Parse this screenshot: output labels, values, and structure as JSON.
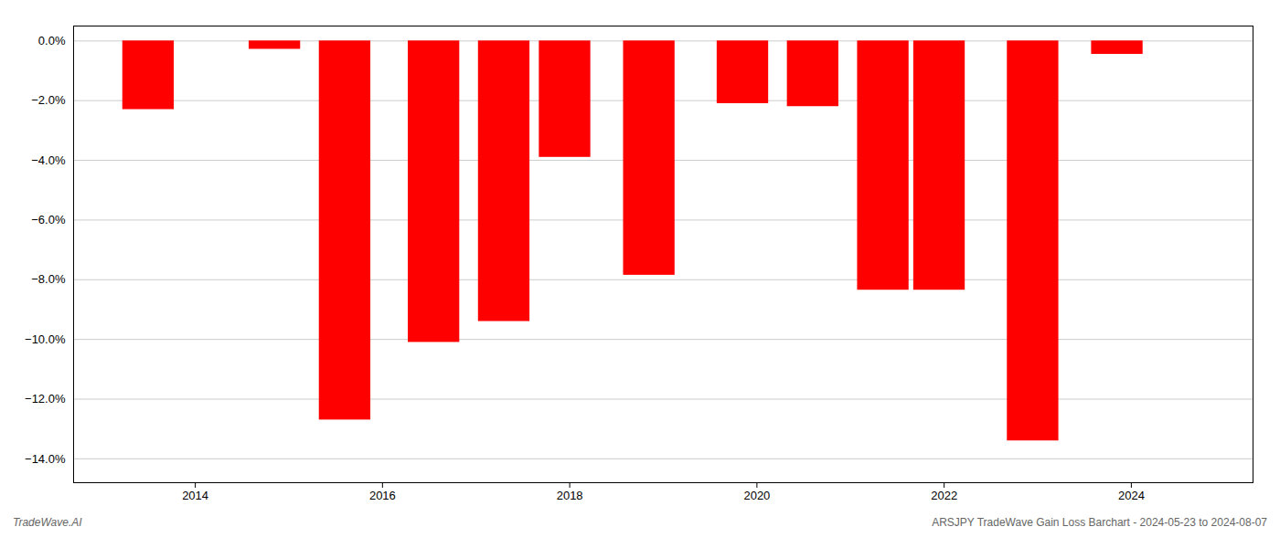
{
  "chart_data": {
    "type": "bar",
    "x": [
      2013.5,
      2014.85,
      2015.6,
      2016.55,
      2017.3,
      2017.95,
      2018.85,
      2019.85,
      2020.6,
      2021.35,
      2021.95,
      2022.95,
      2023.85
    ],
    "values": [
      -2.3,
      -0.28,
      -12.7,
      -10.1,
      -9.4,
      -3.9,
      -7.85,
      -2.1,
      -2.2,
      -8.35,
      -8.35,
      -13.4,
      -0.45
    ],
    "color": "#FF0000",
    "xlim": [
      2012.7,
      2025.3
    ],
    "xticks": [
      2014,
      2016,
      2018,
      2020,
      2022,
      2024
    ],
    "ylim": [
      -14.8,
      0.5
    ],
    "yticks": [
      {
        "value": 0.0,
        "label": "0.0%"
      },
      {
        "value": -2.0,
        "label": "−2.0%"
      },
      {
        "value": -4.0,
        "label": "−4.0%"
      },
      {
        "value": -6.0,
        "label": "−6.0%"
      },
      {
        "value": -8.0,
        "label": "−8.0%"
      },
      {
        "value": -10.0,
        "label": "−10.0%"
      },
      {
        "value": -12.0,
        "label": "−12.0%"
      },
      {
        "value": -14.0,
        "label": "−14.0%"
      }
    ],
    "grid": true,
    "annotations": [
      "TradeWave.AI",
      "ARSJPY TradeWave Gain Loss Barchart - 2024-05-23 to 2024-08-07"
    ]
  }
}
